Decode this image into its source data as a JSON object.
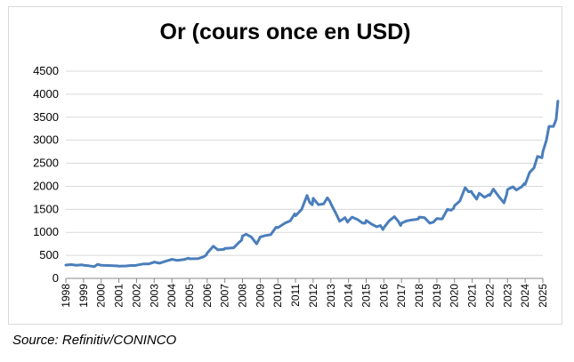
{
  "chart_data": {
    "type": "line",
    "title": "Or (cours once en USD)",
    "xlabel": "",
    "ylabel": "",
    "ylim": [
      0,
      4500
    ],
    "yticks": [
      0,
      500,
      1000,
      1500,
      2000,
      2500,
      3000,
      3500,
      4000,
      4500
    ],
    "xlim": [
      1998,
      2025
    ],
    "xticks": [
      "1998",
      "1999",
      "2000",
      "2001",
      "2002",
      "2003",
      "2004",
      "2005",
      "2006",
      "2007",
      "2008",
      "2009",
      "2010",
      "2011",
      "2012",
      "2013",
      "2014",
      "2015",
      "2016",
      "2017",
      "2018",
      "2019",
      "2020",
      "2021",
      "2022",
      "2023",
      "2024",
      "2025"
    ],
    "grid": true,
    "legend": "none",
    "series": [
      {
        "color": "#4a7ebb",
        "points": [
          [
            1998.0,
            290
          ],
          [
            1998.3,
            300
          ],
          [
            1998.6,
            285
          ],
          [
            1998.9,
            295
          ],
          [
            1999.0,
            285
          ],
          [
            1999.3,
            275
          ],
          [
            1999.6,
            255
          ],
          [
            1999.8,
            305
          ],
          [
            1999.95,
            290
          ],
          [
            2000.0,
            285
          ],
          [
            2000.4,
            280
          ],
          [
            2000.7,
            275
          ],
          [
            2000.95,
            270
          ],
          [
            2001.0,
            265
          ],
          [
            2001.4,
            270
          ],
          [
            2001.7,
            280
          ],
          [
            2001.95,
            280
          ],
          [
            2002.0,
            285
          ],
          [
            2002.4,
            315
          ],
          [
            2002.7,
            315
          ],
          [
            2002.95,
            345
          ],
          [
            2003.0,
            355
          ],
          [
            2003.3,
            330
          ],
          [
            2003.7,
            380
          ],
          [
            2003.95,
            405
          ],
          [
            2004.0,
            415
          ],
          [
            2004.3,
            390
          ],
          [
            2004.7,
            410
          ],
          [
            2004.95,
            440
          ],
          [
            2005.0,
            425
          ],
          [
            2005.5,
            430
          ],
          [
            2005.8,
            470
          ],
          [
            2005.95,
            510
          ],
          [
            2006.0,
            550
          ],
          [
            2006.35,
            700
          ],
          [
            2006.6,
            620
          ],
          [
            2006.95,
            630
          ],
          [
            2007.0,
            650
          ],
          [
            2007.5,
            665
          ],
          [
            2007.8,
            780
          ],
          [
            2007.95,
            830
          ],
          [
            2008.0,
            920
          ],
          [
            2008.2,
            960
          ],
          [
            2008.5,
            900
          ],
          [
            2008.8,
            750
          ],
          [
            2008.95,
            860
          ],
          [
            2009.0,
            900
          ],
          [
            2009.3,
            930
          ],
          [
            2009.6,
            950
          ],
          [
            2009.9,
            1110
          ],
          [
            2010.0,
            1100
          ],
          [
            2010.4,
            1200
          ],
          [
            2010.7,
            1250
          ],
          [
            2010.95,
            1400
          ],
          [
            2011.0,
            1360
          ],
          [
            2011.35,
            1500
          ],
          [
            2011.65,
            1800
          ],
          [
            2011.8,
            1650
          ],
          [
            2011.95,
            1600
          ],
          [
            2012.0,
            1740
          ],
          [
            2012.3,
            1600
          ],
          [
            2012.6,
            1620
          ],
          [
            2012.8,
            1750
          ],
          [
            2012.95,
            1670
          ],
          [
            2013.0,
            1620
          ],
          [
            2013.3,
            1400
          ],
          [
            2013.5,
            1240
          ],
          [
            2013.8,
            1320
          ],
          [
            2013.95,
            1220
          ],
          [
            2014.0,
            1250
          ],
          [
            2014.2,
            1330
          ],
          [
            2014.5,
            1280
          ],
          [
            2014.8,
            1200
          ],
          [
            2014.95,
            1200
          ],
          [
            2015.0,
            1260
          ],
          [
            2015.3,
            1180
          ],
          [
            2015.6,
            1120
          ],
          [
            2015.8,
            1150
          ],
          [
            2015.95,
            1060
          ],
          [
            2016.0,
            1100
          ],
          [
            2016.3,
            1250
          ],
          [
            2016.6,
            1340
          ],
          [
            2016.8,
            1250
          ],
          [
            2016.95,
            1150
          ],
          [
            2017.0,
            1200
          ],
          [
            2017.3,
            1250
          ],
          [
            2017.6,
            1270
          ],
          [
            2017.8,
            1280
          ],
          [
            2017.95,
            1290
          ],
          [
            2018.0,
            1330
          ],
          [
            2018.3,
            1320
          ],
          [
            2018.6,
            1200
          ],
          [
            2018.8,
            1220
          ],
          [
            2018.95,
            1280
          ],
          [
            2019.0,
            1300
          ],
          [
            2019.3,
            1290
          ],
          [
            2019.6,
            1500
          ],
          [
            2019.8,
            1480
          ],
          [
            2019.95,
            1520
          ],
          [
            2020.0,
            1580
          ],
          [
            2020.3,
            1680
          ],
          [
            2020.6,
            1970
          ],
          [
            2020.8,
            1880
          ],
          [
            2020.95,
            1890
          ],
          [
            2021.0,
            1850
          ],
          [
            2021.25,
            1720
          ],
          [
            2021.4,
            1850
          ],
          [
            2021.7,
            1760
          ],
          [
            2021.95,
            1820
          ],
          [
            2022.0,
            1800
          ],
          [
            2022.2,
            1940
          ],
          [
            2022.5,
            1780
          ],
          [
            2022.8,
            1640
          ],
          [
            2022.95,
            1820
          ],
          [
            2023.0,
            1930
          ],
          [
            2023.3,
            1990
          ],
          [
            2023.5,
            1920
          ],
          [
            2023.8,
            1990
          ],
          [
            2023.95,
            2060
          ],
          [
            2024.0,
            2040
          ],
          [
            2024.25,
            2300
          ],
          [
            2024.5,
            2400
          ],
          [
            2024.7,
            2650
          ],
          [
            2024.95,
            2620
          ],
          [
            2025.0,
            2750
          ],
          [
            2025.2,
            3000
          ],
          [
            2025.35,
            3300
          ],
          [
            2025.6,
            3300
          ],
          [
            2025.75,
            3450
          ],
          [
            2025.85,
            3850
          ]
        ]
      }
    ]
  },
  "source": "Source: Refinitiv/CONINCO"
}
